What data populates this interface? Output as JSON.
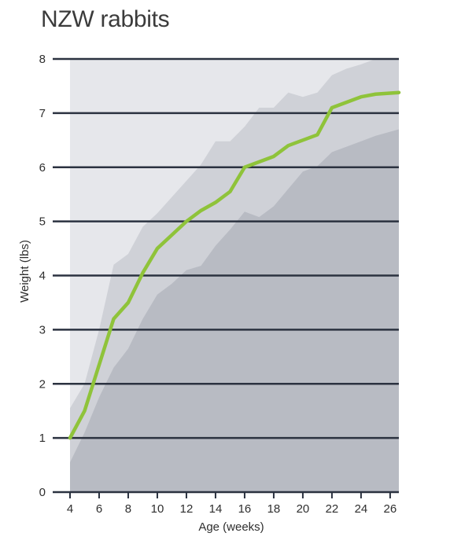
{
  "chart_data": {
    "type": "area",
    "title": "NZW rabbits",
    "xlabel": "Age (weeks)",
    "ylabel": "Weight (lbs)",
    "xlim": [
      4,
      26.6
    ],
    "ylim": [
      0,
      8
    ],
    "x_ticks": [
      4,
      6,
      8,
      10,
      12,
      14,
      16,
      18,
      20,
      22,
      24,
      26
    ],
    "y_ticks": [
      0,
      1,
      2,
      3,
      4,
      5,
      6,
      7,
      8
    ],
    "grid": "horizontal",
    "colors": {
      "background_band": "#e6e7eb",
      "upper_band": "#cfd1d7",
      "lower_band": "#b8bbc3",
      "line": "#8fc33a",
      "grid": "#2b3240"
    },
    "series": [
      {
        "role": "upper-range",
        "points": [
          [
            4,
            1.55
          ],
          [
            5,
            2.0
          ],
          [
            6,
            3.0
          ],
          [
            7,
            4.2
          ],
          [
            8,
            4.4
          ],
          [
            9,
            4.9
          ],
          [
            10,
            5.15
          ],
          [
            11,
            5.45
          ],
          [
            12,
            5.75
          ],
          [
            13,
            6.05
          ],
          [
            14,
            6.48
          ],
          [
            15,
            6.48
          ],
          [
            16,
            6.75
          ],
          [
            17,
            7.1
          ],
          [
            18,
            7.1
          ],
          [
            19,
            7.38
          ],
          [
            20,
            7.3
          ],
          [
            21,
            7.38
          ],
          [
            22,
            7.7
          ],
          [
            23,
            7.82
          ],
          [
            24,
            7.9
          ],
          [
            25,
            8.0
          ],
          [
            26.6,
            8.0
          ]
        ]
      },
      {
        "role": "lower-range",
        "points": [
          [
            4,
            0.55
          ],
          [
            5,
            1.1
          ],
          [
            6,
            1.75
          ],
          [
            7,
            2.3
          ],
          [
            8,
            2.65
          ],
          [
            9,
            3.2
          ],
          [
            10,
            3.65
          ],
          [
            11,
            3.85
          ],
          [
            12,
            4.1
          ],
          [
            13,
            4.18
          ],
          [
            14,
            4.55
          ],
          [
            15,
            4.85
          ],
          [
            16,
            5.18
          ],
          [
            17,
            5.08
          ],
          [
            18,
            5.28
          ],
          [
            19,
            5.6
          ],
          [
            20,
            5.92
          ],
          [
            21,
            6.02
          ],
          [
            22,
            6.28
          ],
          [
            23,
            6.38
          ],
          [
            24,
            6.48
          ],
          [
            25,
            6.58
          ],
          [
            26.6,
            6.7
          ]
        ]
      },
      {
        "role": "average",
        "points": [
          [
            4,
            1.0
          ],
          [
            5,
            1.5
          ],
          [
            6,
            2.35
          ],
          [
            7,
            3.2
          ],
          [
            8,
            3.5
          ],
          [
            9,
            4.05
          ],
          [
            10,
            4.5
          ],
          [
            11,
            4.75
          ],
          [
            12,
            5.0
          ],
          [
            13,
            5.2
          ],
          [
            14,
            5.35
          ],
          [
            15,
            5.55
          ],
          [
            16,
            6.0
          ],
          [
            17,
            6.1
          ],
          [
            18,
            6.2
          ],
          [
            19,
            6.4
          ],
          [
            20,
            6.5
          ],
          [
            21,
            6.6
          ],
          [
            22,
            7.1
          ],
          [
            23,
            7.2
          ],
          [
            24,
            7.3
          ],
          [
            25,
            7.35
          ],
          [
            26.6,
            7.38
          ]
        ]
      }
    ]
  }
}
